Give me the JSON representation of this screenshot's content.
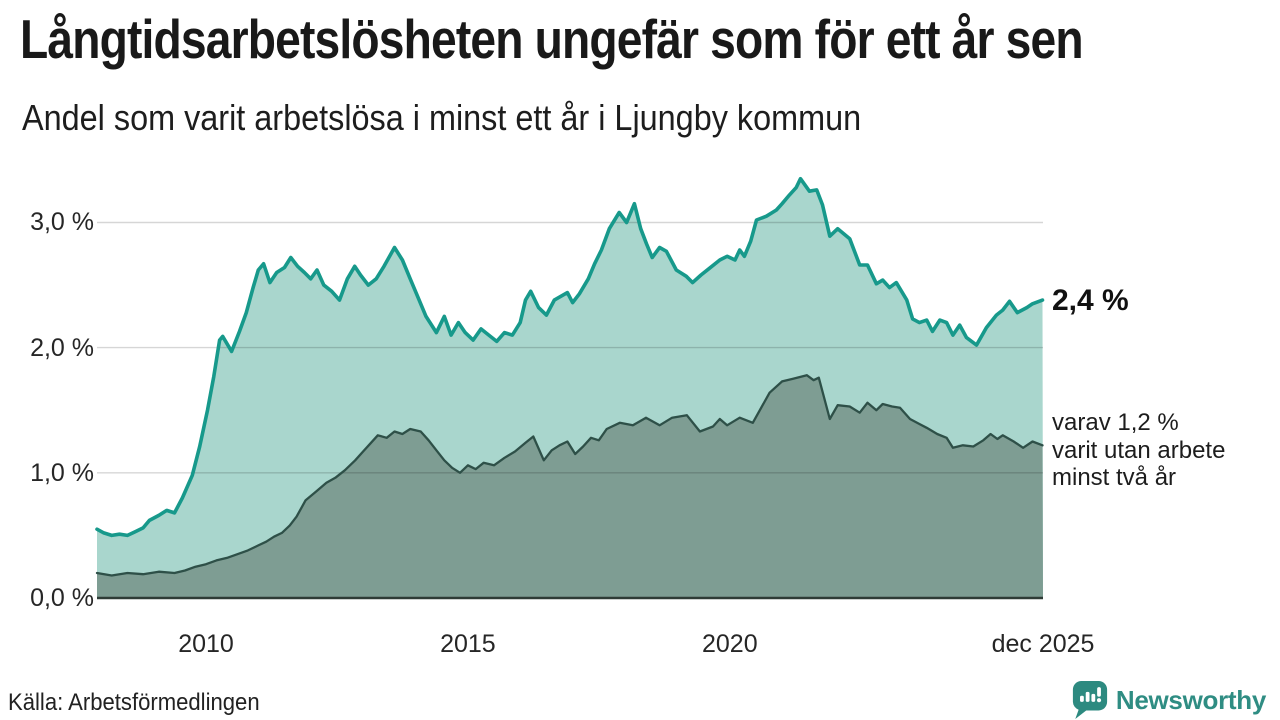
{
  "header": {
    "title": "Långtidsarbetslösheten ungefär som för ett år sen",
    "subtitle": "Andel som varit arbetslösa i minst ett år i Ljungby kommun"
  },
  "annotations": {
    "latest_value": "2,4 %",
    "series2_lines": [
      "varav 1,2 %",
      "varit utan arbete",
      "minst två år"
    ]
  },
  "footer": {
    "source": "Källa: Arbetsförmedlingen",
    "brand": "Newsworthy"
  },
  "chart_data": {
    "type": "area",
    "title": "Långtidsarbetslösheten ungefär som för ett år sen",
    "subtitle": "Andel som varit arbetslösa i minst ett år i Ljungby kommun",
    "unit": "%",
    "grid": true,
    "legend_position": "end-of-line-labels",
    "x_range": [
      2007.92,
      2025.98
    ],
    "y_range": [
      0,
      3.4
    ],
    "x_ticks": [
      {
        "t": 2010,
        "label": "2010"
      },
      {
        "t": 2015,
        "label": "2015"
      },
      {
        "t": 2020,
        "label": "2020"
      },
      {
        "t": 2025.98,
        "label": "dec 2025"
      }
    ],
    "y_ticks": [
      {
        "v": 0,
        "label": "0,0 %"
      },
      {
        "v": 1,
        "label": "1,0 %"
      },
      {
        "v": 2,
        "label": "2,0 %"
      },
      {
        "v": 3,
        "label": "3,0 %"
      }
    ],
    "palette": {
      "accent": "#17998b",
      "grid_overlay": "rgba(0,0,0,0.16)",
      "axis": "#2e3b36",
      "text": "#1d1d1d",
      "brand_teal": "#2f8d83"
    },
    "series": [
      {
        "name": "Andel arbetslösa minst ett år",
        "end_label": "2,4 %",
        "end_value": 2.4,
        "stroke": "#17998b",
        "fill": "#a9d6cd",
        "stroke_width": 3.6,
        "points": [
          [
            2007.92,
            0.55
          ],
          [
            2008.05,
            0.52
          ],
          [
            2008.2,
            0.5
          ],
          [
            2008.35,
            0.51
          ],
          [
            2008.5,
            0.5
          ],
          [
            2008.65,
            0.53
          ],
          [
            2008.8,
            0.56
          ],
          [
            2008.92,
            0.62
          ],
          [
            2009.1,
            0.66
          ],
          [
            2009.25,
            0.7
          ],
          [
            2009.4,
            0.68
          ],
          [
            2009.55,
            0.8
          ],
          [
            2009.74,
            0.98
          ],
          [
            2009.88,
            1.21
          ],
          [
            2010.03,
            1.5
          ],
          [
            2010.15,
            1.77
          ],
          [
            2010.26,
            2.06
          ],
          [
            2010.32,
            2.09
          ],
          [
            2010.49,
            1.97
          ],
          [
            2010.64,
            2.13
          ],
          [
            2010.77,
            2.28
          ],
          [
            2010.9,
            2.48
          ],
          [
            2011.0,
            2.62
          ],
          [
            2011.1,
            2.67
          ],
          [
            2011.22,
            2.52
          ],
          [
            2011.35,
            2.6
          ],
          [
            2011.5,
            2.64
          ],
          [
            2011.62,
            2.72
          ],
          [
            2011.75,
            2.65
          ],
          [
            2011.88,
            2.6
          ],
          [
            2012.0,
            2.55
          ],
          [
            2012.12,
            2.62
          ],
          [
            2012.25,
            2.5
          ],
          [
            2012.4,
            2.45
          ],
          [
            2012.55,
            2.38
          ],
          [
            2012.7,
            2.55
          ],
          [
            2012.84,
            2.65
          ],
          [
            2012.95,
            2.58
          ],
          [
            2013.1,
            2.5
          ],
          [
            2013.25,
            2.55
          ],
          [
            2013.4,
            2.65
          ],
          [
            2013.6,
            2.8
          ],
          [
            2013.75,
            2.7
          ],
          [
            2013.9,
            2.55
          ],
          [
            2014.05,
            2.4
          ],
          [
            2014.2,
            2.25
          ],
          [
            2014.4,
            2.12
          ],
          [
            2014.55,
            2.25
          ],
          [
            2014.68,
            2.1
          ],
          [
            2014.82,
            2.2
          ],
          [
            2014.95,
            2.12
          ],
          [
            2015.1,
            2.06
          ],
          [
            2015.25,
            2.15
          ],
          [
            2015.4,
            2.1
          ],
          [
            2015.55,
            2.05
          ],
          [
            2015.7,
            2.12
          ],
          [
            2015.85,
            2.1
          ],
          [
            2016.0,
            2.2
          ],
          [
            2016.1,
            2.38
          ],
          [
            2016.2,
            2.45
          ],
          [
            2016.35,
            2.32
          ],
          [
            2016.5,
            2.26
          ],
          [
            2016.65,
            2.38
          ],
          [
            2016.9,
            2.44
          ],
          [
            2017.0,
            2.36
          ],
          [
            2017.13,
            2.43
          ],
          [
            2017.3,
            2.55
          ],
          [
            2017.42,
            2.67
          ],
          [
            2017.55,
            2.78
          ],
          [
            2017.7,
            2.95
          ],
          [
            2017.89,
            3.08
          ],
          [
            2018.03,
            3.0
          ],
          [
            2018.18,
            3.15
          ],
          [
            2018.3,
            2.95
          ],
          [
            2018.41,
            2.83
          ],
          [
            2018.52,
            2.72
          ],
          [
            2018.66,
            2.8
          ],
          [
            2018.79,
            2.77
          ],
          [
            2018.98,
            2.62
          ],
          [
            2019.17,
            2.57
          ],
          [
            2019.29,
            2.52
          ],
          [
            2019.45,
            2.58
          ],
          [
            2019.6,
            2.63
          ],
          [
            2019.81,
            2.7
          ],
          [
            2019.95,
            2.73
          ],
          [
            2020.1,
            2.7
          ],
          [
            2020.19,
            2.78
          ],
          [
            2020.28,
            2.73
          ],
          [
            2020.4,
            2.85
          ],
          [
            2020.51,
            3.02
          ],
          [
            2020.7,
            3.05
          ],
          [
            2020.89,
            3.1
          ],
          [
            2021.0,
            3.15
          ],
          [
            2021.14,
            3.22
          ],
          [
            2021.27,
            3.28
          ],
          [
            2021.35,
            3.35
          ],
          [
            2021.52,
            3.25
          ],
          [
            2021.66,
            3.26
          ],
          [
            2021.77,
            3.14
          ],
          [
            2021.91,
            2.89
          ],
          [
            2022.06,
            2.95
          ],
          [
            2022.29,
            2.87
          ],
          [
            2022.48,
            2.66
          ],
          [
            2022.63,
            2.66
          ],
          [
            2022.8,
            2.51
          ],
          [
            2022.92,
            2.54
          ],
          [
            2023.05,
            2.48
          ],
          [
            2023.18,
            2.52
          ],
          [
            2023.38,
            2.38
          ],
          [
            2023.49,
            2.23
          ],
          [
            2023.62,
            2.2
          ],
          [
            2023.76,
            2.22
          ],
          [
            2023.87,
            2.13
          ],
          [
            2024.01,
            2.22
          ],
          [
            2024.14,
            2.2
          ],
          [
            2024.26,
            2.1
          ],
          [
            2024.39,
            2.18
          ],
          [
            2024.52,
            2.08
          ],
          [
            2024.71,
            2.02
          ],
          [
            2024.9,
            2.16
          ],
          [
            2025.09,
            2.26
          ],
          [
            2025.21,
            2.3
          ],
          [
            2025.34,
            2.37
          ],
          [
            2025.49,
            2.28
          ],
          [
            2025.67,
            2.32
          ],
          [
            2025.78,
            2.35
          ],
          [
            2025.97,
            2.38
          ]
        ]
      },
      {
        "name": "Andel arbetslösa minst två år",
        "end_label": "varav 1,2 % varit utan arbete minst två år",
        "end_value": 1.2,
        "stroke": "#2e5048",
        "fill": "#7e9d93",
        "stroke_width": 2.3,
        "points": [
          [
            2007.92,
            0.2
          ],
          [
            2008.2,
            0.18
          ],
          [
            2008.5,
            0.2
          ],
          [
            2008.8,
            0.19
          ],
          [
            2009.1,
            0.21
          ],
          [
            2009.4,
            0.2
          ],
          [
            2009.6,
            0.22
          ],
          [
            2009.8,
            0.25
          ],
          [
            2010.0,
            0.27
          ],
          [
            2010.2,
            0.3
          ],
          [
            2010.4,
            0.32
          ],
          [
            2010.6,
            0.35
          ],
          [
            2010.8,
            0.38
          ],
          [
            2011.0,
            0.42
          ],
          [
            2011.15,
            0.45
          ],
          [
            2011.3,
            0.49
          ],
          [
            2011.45,
            0.52
          ],
          [
            2011.6,
            0.58
          ],
          [
            2011.73,
            0.65
          ],
          [
            2011.9,
            0.78
          ],
          [
            2012.1,
            0.85
          ],
          [
            2012.3,
            0.92
          ],
          [
            2012.47,
            0.96
          ],
          [
            2012.65,
            1.02
          ],
          [
            2012.85,
            1.1
          ],
          [
            2013.0,
            1.17
          ],
          [
            2013.15,
            1.24
          ],
          [
            2013.28,
            1.3
          ],
          [
            2013.45,
            1.28
          ],
          [
            2013.6,
            1.33
          ],
          [
            2013.75,
            1.31
          ],
          [
            2013.9,
            1.35
          ],
          [
            2014.1,
            1.33
          ],
          [
            2014.25,
            1.26
          ],
          [
            2014.4,
            1.18
          ],
          [
            2014.55,
            1.1
          ],
          [
            2014.7,
            1.04
          ],
          [
            2014.85,
            1.0
          ],
          [
            2015.0,
            1.06
          ],
          [
            2015.15,
            1.03
          ],
          [
            2015.3,
            1.08
          ],
          [
            2015.5,
            1.06
          ],
          [
            2015.7,
            1.12
          ],
          [
            2015.9,
            1.17
          ],
          [
            2016.1,
            1.24
          ],
          [
            2016.25,
            1.29
          ],
          [
            2016.45,
            1.1
          ],
          [
            2016.6,
            1.18
          ],
          [
            2016.75,
            1.22
          ],
          [
            2016.9,
            1.25
          ],
          [
            2017.05,
            1.15
          ],
          [
            2017.2,
            1.21
          ],
          [
            2017.35,
            1.28
          ],
          [
            2017.5,
            1.26
          ],
          [
            2017.65,
            1.35
          ],
          [
            2017.9,
            1.4
          ],
          [
            2018.15,
            1.38
          ],
          [
            2018.4,
            1.44
          ],
          [
            2018.66,
            1.38
          ],
          [
            2018.9,
            1.44
          ],
          [
            2019.18,
            1.46
          ],
          [
            2019.43,
            1.33
          ],
          [
            2019.68,
            1.37
          ],
          [
            2019.81,
            1.43
          ],
          [
            2019.95,
            1.38
          ],
          [
            2020.19,
            1.44
          ],
          [
            2020.44,
            1.4
          ],
          [
            2020.76,
            1.64
          ],
          [
            2021.0,
            1.73
          ],
          [
            2021.2,
            1.75
          ],
          [
            2021.47,
            1.78
          ],
          [
            2021.6,
            1.74
          ],
          [
            2021.7,
            1.76
          ],
          [
            2021.91,
            1.43
          ],
          [
            2022.06,
            1.54
          ],
          [
            2022.29,
            1.53
          ],
          [
            2022.48,
            1.48
          ],
          [
            2022.63,
            1.56
          ],
          [
            2022.8,
            1.5
          ],
          [
            2022.92,
            1.55
          ],
          [
            2023.1,
            1.53
          ],
          [
            2023.25,
            1.52
          ],
          [
            2023.44,
            1.43
          ],
          [
            2023.62,
            1.39
          ],
          [
            2023.76,
            1.36
          ],
          [
            2023.96,
            1.31
          ],
          [
            2024.14,
            1.28
          ],
          [
            2024.26,
            1.2
          ],
          [
            2024.45,
            1.22
          ],
          [
            2024.65,
            1.21
          ],
          [
            2024.84,
            1.26
          ],
          [
            2024.98,
            1.31
          ],
          [
            2025.11,
            1.27
          ],
          [
            2025.21,
            1.3
          ],
          [
            2025.42,
            1.25
          ],
          [
            2025.6,
            1.2
          ],
          [
            2025.78,
            1.25
          ],
          [
            2025.97,
            1.22
          ]
        ]
      }
    ]
  }
}
